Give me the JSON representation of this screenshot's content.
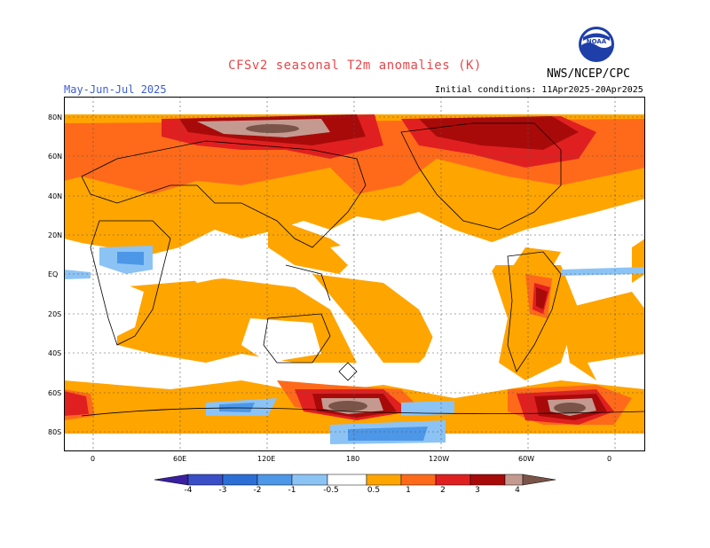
{
  "title": "CFSv2 seasonal T2m anomalies (K)",
  "season": "May-Jun-Jul 2025",
  "agency": "NWS/NCEP/CPC",
  "initial_conditions": "Initial conditions: 11Apr2025-20Apr2025",
  "logo_text": "NOAA",
  "lat_ticks": [
    "80N",
    "60N",
    "40N",
    "20N",
    "EQ",
    "20S",
    "40S",
    "60S",
    "80S"
  ],
  "lon_ticks": [
    "0",
    "60E",
    "120E",
    "180",
    "120W",
    "60W",
    "0"
  ],
  "colorbar": {
    "labels": [
      "-4",
      "-3",
      "-2",
      "-1",
      "-0.5",
      "0.5",
      "1",
      "2",
      "3",
      "4"
    ],
    "colors": [
      "#3a1fa0",
      "#3a4ec8",
      "#2b6fd6",
      "#4d97e8",
      "#8cc3f5",
      "#ffffff",
      "#ffa500",
      "#ff6a1a",
      "#e02020",
      "#a80a0a",
      "#c49a90",
      "#7a5448"
    ]
  },
  "colors": {
    "warm_1": "#ffa500",
    "warm_2": "#ff6a1a",
    "warm_3": "#e02020",
    "warm_4": "#a80a0a",
    "warm_5": "#c49a90",
    "cool_1": "#8cc3f5",
    "cool_2": "#4d97e8",
    "title_red": "#e8474a",
    "season_blue": "#3d5fd0"
  }
}
